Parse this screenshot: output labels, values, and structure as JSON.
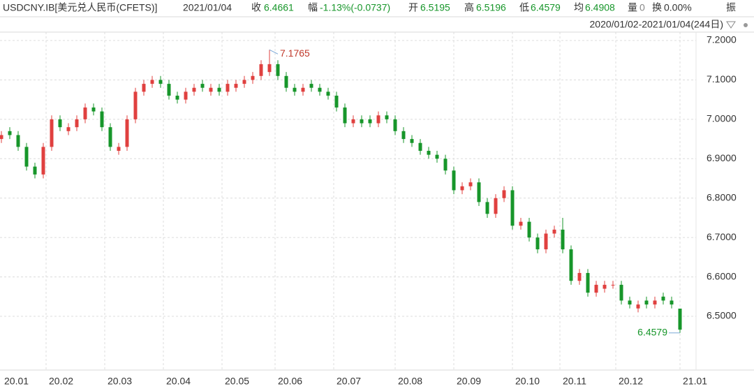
{
  "header": {
    "symbol": "USDCNY.IB[美元兑人民币(CFETS)]",
    "date": "2021/01/04",
    "fields": [
      {
        "label": "收",
        "value": "6.4661"
      },
      {
        "label": "幅",
        "value": "-1.13%(-0.0737)"
      },
      {
        "label": "开",
        "value": "6.5195"
      },
      {
        "label": "高",
        "value": "6.5196"
      },
      {
        "label": "低",
        "value": "6.4579"
      },
      {
        "label": "均",
        "value": "6.4908"
      },
      {
        "label": "量",
        "value": "0"
      },
      {
        "label": "换",
        "value": "0.00%"
      },
      {
        "label": "振"
      }
    ],
    "range": "2020/01/02-2021/01/04(244日)"
  },
  "chart_data": {
    "type": "candlestick",
    "up_color": "#e0403f",
    "down_color": "#17962a",
    "grid": true,
    "xlim": [
      -0.5,
      248.75
    ],
    "xticks": [
      {
        "value": 0,
        "label": "20.01"
      },
      {
        "value": 16,
        "label": "20.02"
      },
      {
        "value": 37,
        "label": "20.03"
      },
      {
        "value": 58,
        "label": "20.04"
      },
      {
        "value": 79,
        "label": "20.05"
      },
      {
        "value": 98,
        "label": "20.06"
      },
      {
        "value": 119,
        "label": "20.07"
      },
      {
        "value": 141,
        "label": "20.08"
      },
      {
        "value": 162,
        "label": "20.09"
      },
      {
        "value": 183,
        "label": "20.10"
      },
      {
        "value": 200,
        "label": "20.11"
      },
      {
        "value": 220,
        "label": "20.12"
      },
      {
        "value": 243,
        "label": "21.01"
      }
    ],
    "ylim": [
      6.3636,
      7.2213
    ],
    "yticks": [
      {
        "value": 6.5,
        "label": "6.5000"
      },
      {
        "value": 6.6,
        "label": "6.6000"
      },
      {
        "value": 6.7,
        "label": "6.7000"
      },
      {
        "value": 6.8,
        "label": "6.8000"
      },
      {
        "value": 6.9,
        "label": "6.9000"
      },
      {
        "value": 7.0,
        "label": "7.0000"
      },
      {
        "value": 7.1,
        "label": "7.1000"
      },
      {
        "value": 7.2,
        "label": "7.2000"
      }
    ],
    "x": [
      0,
      3,
      6,
      9,
      12,
      15,
      18,
      21,
      24,
      27,
      30,
      33,
      36,
      39,
      42,
      45,
      48,
      51,
      54,
      57,
      60,
      63,
      66,
      69,
      72,
      75,
      78,
      81,
      84,
      87,
      90,
      93,
      96,
      99,
      102,
      105,
      108,
      111,
      114,
      117,
      120,
      123,
      126,
      129,
      132,
      135,
      138,
      141,
      144,
      147,
      150,
      153,
      156,
      159,
      162,
      165,
      168,
      171,
      174,
      177,
      180,
      183,
      186,
      189,
      192,
      195,
      198,
      201,
      204,
      207,
      210,
      213,
      216,
      219,
      222,
      225,
      228,
      231,
      234,
      237,
      240,
      243
    ],
    "open": [
      6.95,
      6.97,
      6.96,
      6.93,
      6.88,
      6.86,
      6.93,
      7.0,
      6.97,
      6.98,
      7.0,
      7.03,
      7.02,
      6.98,
      6.92,
      6.93,
      7.0,
      7.07,
      7.09,
      7.1,
      7.09,
      7.06,
      7.05,
      7.07,
      7.09,
      7.07,
      7.08,
      7.07,
      7.08,
      7.09,
      7.1,
      7.11,
      7.12,
      7.14,
      7.11,
      7.08,
      7.07,
      7.09,
      7.08,
      7.07,
      7.06,
      7.03,
      6.99,
      7.0,
      7.0,
      6.99,
      7.01,
      7.0,
      6.97,
      6.95,
      6.94,
      6.92,
      6.91,
      6.9,
      6.87,
      6.82,
      6.83,
      6.84,
      6.79,
      6.76,
      6.8,
      6.82,
      6.73,
      6.74,
      6.7,
      6.67,
      6.71,
      6.72,
      6.67,
      6.59,
      6.61,
      6.56,
      6.57,
      6.58,
      6.58,
      6.54,
      6.52,
      6.54,
      6.53,
      6.55,
      6.54,
      6.5195
    ],
    "high": [
      6.97,
      6.98,
      6.97,
      6.94,
      6.89,
      6.94,
      7.01,
      7.01,
      6.99,
      7.01,
      7.04,
      7.04,
      7.03,
      6.99,
      6.94,
      7.01,
      7.08,
      7.1,
      7.11,
      7.11,
      7.1,
      7.07,
      7.08,
      7.09,
      7.1,
      7.09,
      7.09,
      7.1,
      7.1,
      7.11,
      7.12,
      7.15,
      7.1765,
      7.15,
      7.12,
      7.09,
      7.09,
      7.1,
      7.09,
      7.08,
      7.07,
      7.04,
      7.01,
      7.01,
      7.01,
      7.02,
      7.02,
      7.01,
      6.98,
      6.96,
      6.95,
      6.93,
      6.92,
      6.91,
      6.88,
      6.84,
      6.85,
      6.85,
      6.8,
      6.81,
      6.83,
      6.83,
      6.75,
      6.75,
      6.71,
      6.72,
      6.73,
      6.75,
      6.68,
      6.62,
      6.62,
      6.59,
      6.59,
      6.59,
      6.59,
      6.55,
      6.54,
      6.55,
      6.55,
      6.56,
      6.55,
      6.5196
    ],
    "low": [
      6.94,
      6.95,
      6.92,
      6.87,
      6.85,
      6.85,
      6.92,
      6.97,
      6.96,
      6.97,
      6.99,
      7.01,
      6.97,
      6.92,
      6.91,
      6.92,
      6.99,
      7.06,
      7.08,
      7.08,
      7.05,
      7.04,
      7.04,
      7.06,
      7.07,
      7.06,
      7.06,
      7.06,
      7.07,
      7.08,
      7.09,
      7.1,
      7.11,
      7.1,
      7.07,
      7.06,
      7.06,
      7.07,
      7.06,
      7.05,
      7.02,
      6.98,
      6.98,
      6.98,
      6.98,
      6.98,
      6.99,
      6.96,
      6.94,
      6.93,
      6.91,
      6.9,
      6.89,
      6.86,
      6.81,
      6.81,
      6.82,
      6.78,
      6.75,
      6.75,
      6.79,
      6.72,
      6.72,
      6.69,
      6.66,
      6.66,
      6.7,
      6.66,
      6.58,
      6.58,
      6.55,
      6.55,
      6.56,
      6.57,
      6.53,
      6.52,
      6.51,
      6.52,
      6.52,
      6.53,
      6.52,
      6.4579
    ],
    "close": [
      6.96,
      6.96,
      6.93,
      6.88,
      6.86,
      6.93,
      7.0,
      6.98,
      6.98,
      7.0,
      7.03,
      7.02,
      6.98,
      6.93,
      6.93,
      7.0,
      7.07,
      7.09,
      7.1,
      7.09,
      7.06,
      7.05,
      7.07,
      7.08,
      7.08,
      7.08,
      7.07,
      7.09,
      7.09,
      7.1,
      7.11,
      7.14,
      7.14,
      7.11,
      7.08,
      7.07,
      7.08,
      7.08,
      7.07,
      7.06,
      7.03,
      6.99,
      7.0,
      6.99,
      6.99,
      7.01,
      7.0,
      6.97,
      6.95,
      6.94,
      6.92,
      6.91,
      6.9,
      6.87,
      6.82,
      6.83,
      6.84,
      6.79,
      6.76,
      6.8,
      6.82,
      6.73,
      6.74,
      6.7,
      6.67,
      6.71,
      6.72,
      6.67,
      6.59,
      6.61,
      6.56,
      6.58,
      6.58,
      6.58,
      6.54,
      6.53,
      6.53,
      6.53,
      6.54,
      6.54,
      6.53,
      6.4661
    ]
  }
}
